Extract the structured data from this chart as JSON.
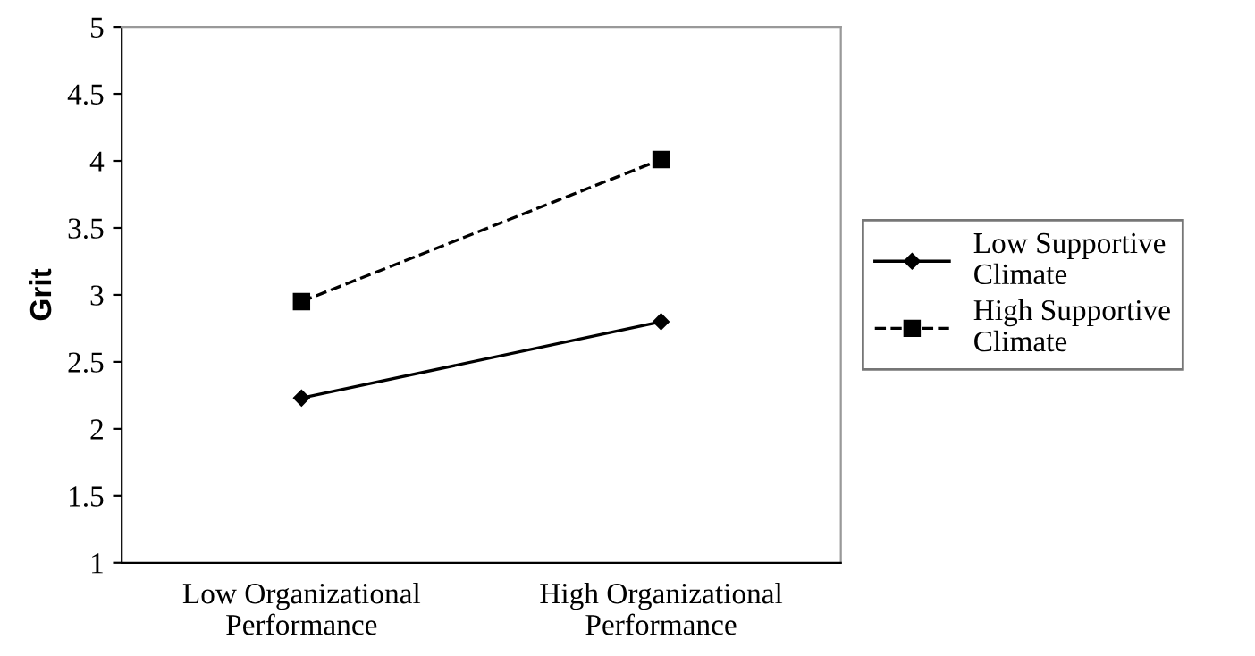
{
  "chart_data": {
    "type": "line",
    "ylabel": "Grit",
    "categories": [
      "Low Organizational\nPerformance",
      "High Organizational\nPerformance"
    ],
    "series": [
      {
        "name": "Low Supportive\nClimate",
        "color": "#000000",
        "values": [
          2.23,
          2.8
        ],
        "marker": "diamond",
        "line_style": "solid"
      },
      {
        "name": "High Supportive\nClimate",
        "color": "#000000",
        "values": [
          2.95,
          4.01
        ],
        "marker": "square",
        "line_style": "dashed"
      }
    ],
    "ylim": [
      1,
      5
    ],
    "yticks": [
      1,
      1.5,
      2,
      2.5,
      3,
      3.5,
      4,
      4.5,
      5
    ],
    "grid": false,
    "legend": "right"
  }
}
